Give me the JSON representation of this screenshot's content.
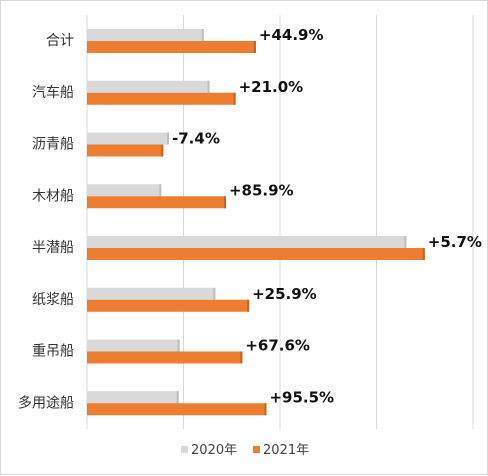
{
  "chart_data": {
    "type": "bar",
    "orientation": "horizontal",
    "categories": [
      "合计",
      "汽车船",
      "沥青船",
      "木材船",
      "半潜船",
      "纸浆船",
      "重吊船",
      "多用途船"
    ],
    "series": [
      {
        "name": "2020年",
        "color": "#d9d9d9",
        "values": [
          121,
          127,
          85,
          77,
          331,
          133,
          96,
          95
        ]
      },
      {
        "name": "2021年",
        "color": "#ed7d31",
        "values": [
          175,
          154,
          79,
          144,
          350,
          168,
          161,
          186
        ]
      }
    ],
    "data_labels": [
      "+44.9%",
      "+21.0%",
      "-7.4%",
      "+85.9%",
      "+5.7%",
      "+25.9%",
      "+67.6%",
      "+95.5%"
    ],
    "xlim": [
      0,
      400
    ],
    "grid": true,
    "legend_position": "bottom"
  }
}
